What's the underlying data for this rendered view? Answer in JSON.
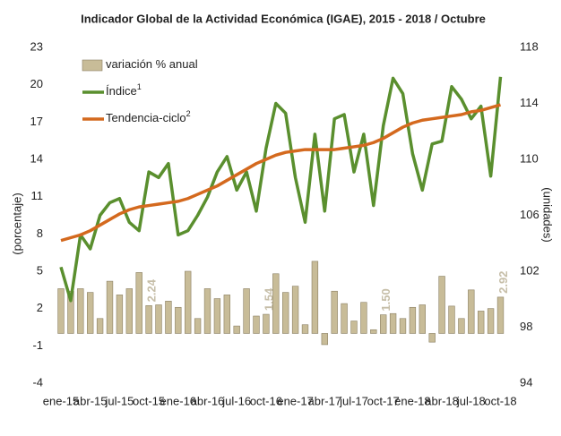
{
  "chart_data": {
    "type": "bar-line",
    "title": "Indicador Global de la Actividad Económica (IGAE), 2015 - 2018 / Octubre",
    "ylabel": "(porcentaje)",
    "y2label": "(unidades)",
    "categories": [
      "ene-15",
      null,
      null,
      "abr-15",
      null,
      null,
      "jul-15",
      null,
      null,
      "oct-15",
      null,
      null,
      "ene-16",
      null,
      null,
      "abr-16",
      null,
      null,
      "jul-16",
      null,
      null,
      "oct-16",
      null,
      null,
      "ene-17",
      null,
      null,
      "abr-17",
      null,
      null,
      "jul-17",
      null,
      null,
      "oct-17",
      null,
      null,
      "ene-18",
      null,
      null,
      "abr-18",
      null,
      null,
      "jul-18",
      null,
      null,
      "oct-18"
    ],
    "ylim": [
      -4,
      23
    ],
    "yticks": [
      -4,
      -1,
      2,
      5,
      8,
      11,
      14,
      17,
      20,
      23
    ],
    "y2lim": [
      94,
      118
    ],
    "y2ticks": [
      94,
      98,
      102,
      106,
      110,
      114,
      118
    ],
    "legend": "upper left",
    "series": [
      {
        "name": "variación % anual",
        "type": "bar",
        "color": "#c8bc98",
        "axis": "y",
        "values": [
          3.6,
          3.4,
          3.6,
          3.3,
          1.2,
          4.2,
          3.1,
          3.6,
          4.9,
          2.24,
          2.3,
          2.6,
          2.1,
          5.0,
          1.2,
          3.6,
          2.8,
          3.1,
          0.6,
          3.6,
          1.4,
          1.54,
          4.8,
          3.3,
          3.8,
          0.7,
          5.8,
          -0.9,
          3.4,
          2.4,
          1.0,
          2.5,
          0.3,
          1.5,
          1.6,
          1.2,
          2.1,
          2.3,
          -0.7,
          4.6,
          2.2,
          1.2,
          3.5,
          1.8,
          2.0,
          2.92
        ],
        "value_labels": [
          null,
          null,
          null,
          null,
          null,
          null,
          null,
          null,
          null,
          "2.24",
          null,
          null,
          null,
          null,
          null,
          null,
          null,
          null,
          null,
          null,
          null,
          "1.54",
          null,
          null,
          null,
          null,
          null,
          null,
          null,
          null,
          null,
          null,
          null,
          "1.50",
          null,
          null,
          null,
          null,
          null,
          null,
          null,
          null,
          null,
          null,
          null,
          "2.92"
        ]
      },
      {
        "name": "Índice",
        "name_sup": "1",
        "type": "line",
        "color": "#5a8f2e",
        "axis": "y2",
        "values": [
          102.3,
          99.9,
          104.6,
          103.6,
          106.0,
          106.9,
          107.2,
          105.5,
          104.9,
          109.1,
          108.7,
          109.7,
          104.6,
          104.9,
          106.0,
          107.3,
          109.1,
          110.2,
          107.8,
          109.1,
          106.3,
          110.8,
          114.0,
          113.3,
          108.7,
          105.5,
          111.8,
          106.3,
          112.9,
          113.2,
          109.1,
          111.8,
          106.7,
          112.4,
          115.8,
          114.7,
          110.4,
          107.8,
          111.1,
          111.3,
          115.2,
          114.3,
          112.9,
          113.8,
          108.8,
          115.9
        ]
      },
      {
        "name": "Tendencia-ciclo",
        "name_sup": "2",
        "type": "line",
        "color": "#d4691e",
        "axis": "y2",
        "values": [
          104.2,
          104.4,
          104.6,
          104.9,
          105.3,
          105.7,
          106.1,
          106.4,
          106.6,
          106.7,
          106.8,
          106.9,
          107.0,
          107.2,
          107.5,
          107.8,
          108.1,
          108.5,
          108.9,
          109.3,
          109.7,
          110.0,
          110.3,
          110.5,
          110.6,
          110.7,
          110.7,
          110.7,
          110.7,
          110.8,
          110.9,
          111.0,
          111.2,
          111.5,
          111.9,
          112.3,
          112.6,
          112.8,
          112.9,
          113.0,
          113.1,
          113.2,
          113.4,
          113.5,
          113.7,
          113.9
        ]
      }
    ]
  }
}
